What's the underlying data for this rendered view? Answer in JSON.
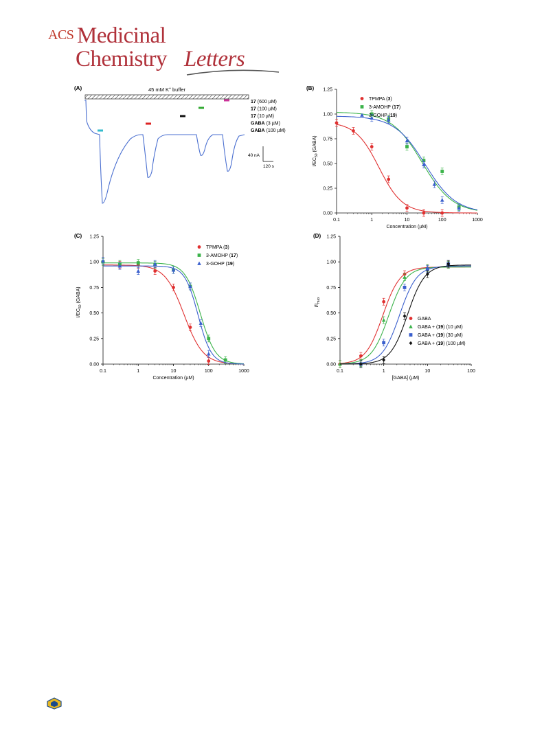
{
  "journal": {
    "acs": "ACS",
    "line1": "Medicinal",
    "line2a": "Chemistry",
    "line2b": "Letters"
  },
  "panel_a": {
    "label": "(A)",
    "buffer_label": "45 mM K",
    "buffer_sup": "+",
    "buffer_suffix": " buffer",
    "scale_current": "40 nA",
    "scale_time": "120 s",
    "legend": [
      {
        "bold": "17",
        "rest": " (600 µM)",
        "color": "#cc3399"
      },
      {
        "bold": "17",
        "rest": " (100 µM)",
        "color": "#33aa33"
      },
      {
        "bold": "17",
        "rest": " (10 µM)",
        "color": "#111111"
      },
      {
        "bold": "GABA",
        "rest": " (3 µM)",
        "color": "#dd2222"
      },
      {
        "bold": "GABA",
        "rest": " (100 µM)",
        "color": "#33bbcc"
      }
    ],
    "trace_color": "#4a6fd0"
  },
  "chart_data": [
    {
      "panel": "(B)",
      "type": "scatter",
      "xlabel": "Concentration (µM)",
      "ylabel": "I/EC50 (GABA)",
      "xscale": "log",
      "xlim": [
        0.1,
        1000
      ],
      "ylim": [
        0,
        1.25
      ],
      "xticks": [
        "0.1",
        "1",
        "10",
        "100",
        "1000"
      ],
      "yticks": [
        "0.00",
        "0.25",
        "0.50",
        "0.75",
        "1.00",
        "1.25"
      ],
      "legend_position": "top-right",
      "series": [
        {
          "name": "TPMPA",
          "bold": "3",
          "marker": "circle",
          "color": "#e03030",
          "x": [
            0.1,
            0.3,
            1,
            3,
            10,
            30,
            100
          ],
          "y": [
            0.91,
            0.83,
            0.67,
            0.34,
            0.05,
            0.0,
            0.0
          ],
          "fit": {
            "top": 0.92,
            "bottom": 0,
            "ic50": 1.6,
            "hill": 1.3
          }
        },
        {
          "name": "3-AMOHP",
          "bold": "17",
          "marker": "square",
          "color": "#3bb34a",
          "x": [
            1,
            3,
            10,
            30,
            100,
            300
          ],
          "y": [
            1.0,
            0.95,
            0.67,
            0.53,
            0.42,
            0.06
          ],
          "fit": {
            "top": 1.02,
            "bottom": 0,
            "ic50": 27,
            "hill": 1.0
          }
        },
        {
          "name": "3-GOHP",
          "bold": "19",
          "marker": "triangle",
          "color": "#3a5fcd",
          "x": [
            1,
            3,
            10,
            30,
            60,
            100,
            300
          ],
          "y": [
            0.96,
            0.94,
            0.73,
            0.49,
            0.29,
            0.13,
            0.05
          ],
          "fit": {
            "top": 0.98,
            "bottom": 0,
            "ic50": 33,
            "hill": 1.0
          }
        }
      ]
    },
    {
      "panel": "(C)",
      "type": "scatter",
      "xlabel": "Concentration (µM)",
      "ylabel": "I/EC50 (GABA)",
      "xscale": "log",
      "xlim": [
        0.1,
        1000
      ],
      "ylim": [
        0,
        1.25
      ],
      "xticks": [
        "0.1",
        "1",
        "10",
        "100",
        "1000"
      ],
      "yticks": [
        "0.00",
        "0.25",
        "0.50",
        "0.75",
        "1.00",
        "1.25"
      ],
      "legend_position": "top-right",
      "series": [
        {
          "name": "TPMPA",
          "bold": "3",
          "marker": "circle",
          "color": "#e03030",
          "x": [
            0.1,
            0.3,
            1,
            3,
            10,
            30,
            100
          ],
          "y": [
            1.0,
            0.97,
            0.97,
            0.91,
            0.75,
            0.36,
            0.03
          ],
          "fit": {
            "top": 0.97,
            "bottom": 0,
            "ic50": 20,
            "hill": 1.6
          }
        },
        {
          "name": "3-AMOHP",
          "bold": "17",
          "marker": "square",
          "color": "#3bb34a",
          "x": [
            0.1,
            0.3,
            1,
            3,
            10,
            30,
            100,
            300
          ],
          "y": [
            1.0,
            0.98,
            0.99,
            0.97,
            0.92,
            0.76,
            0.25,
            0.04
          ],
          "fit": {
            "top": 0.99,
            "bottom": 0,
            "ic50": 58,
            "hill": 2.0
          }
        },
        {
          "name": "3-GOHP",
          "bold": "19",
          "marker": "triangle",
          "color": "#3a5fcd",
          "x": [
            0.1,
            0.3,
            1,
            3,
            10,
            30,
            60,
            100
          ],
          "y": [
            1.01,
            0.96,
            0.91,
            0.98,
            0.92,
            0.76,
            0.4,
            0.1
          ],
          "fit": {
            "top": 0.96,
            "bottom": 0,
            "ic50": 50,
            "hill": 2.3
          }
        }
      ]
    },
    {
      "panel": "(D)",
      "type": "scatter",
      "xlabel": "[GABA] (µM)",
      "ylabel": "I/Imax",
      "xscale": "log",
      "xlim": [
        0.1,
        100
      ],
      "ylim": [
        0,
        1.25
      ],
      "xticks": [
        "0.1",
        "1",
        "10",
        "100"
      ],
      "yticks": [
        "0.00",
        "0.25",
        "0.50",
        "0.75",
        "1.00",
        "1.25"
      ],
      "legend_position": "bottom-right",
      "series": [
        {
          "name": "GABA",
          "bold": "",
          "suffix": "",
          "marker": "circle",
          "color": "#e03030",
          "x": [
            0.1,
            0.3,
            1,
            3,
            10,
            30
          ],
          "y": [
            0.0,
            0.08,
            0.61,
            0.88,
            0.94,
            0.97
          ],
          "fit": {
            "bottom": 0,
            "top": 0.95,
            "ec50": 0.95,
            "hill": 2.2
          }
        },
        {
          "name": "GABA + ",
          "bold": "19",
          "suffix": " (10 µM)",
          "marker": "triangle",
          "color": "#3bb34a",
          "x": [
            0.1,
            0.3,
            1,
            3,
            10,
            30
          ],
          "y": [
            0.0,
            0.01,
            0.43,
            0.85,
            0.94,
            0.97
          ],
          "fit": {
            "bottom": 0,
            "top": 0.95,
            "ec50": 1.3,
            "hill": 2.2
          }
        },
        {
          "name": "GABA + ",
          "bold": "19",
          "suffix": " (30 µM)",
          "marker": "square",
          "color": "#3a5fcd",
          "x": [
            0.3,
            1,
            3,
            10,
            30
          ],
          "y": [
            0.0,
            0.21,
            0.75,
            0.93,
            0.98
          ],
          "fit": {
            "bottom": 0,
            "top": 0.96,
            "ec50": 2.3,
            "hill": 2.2
          }
        },
        {
          "name": "GABA + ",
          "bold": "19",
          "suffix": " (100 µM)",
          "marker": "diamond",
          "color": "#111111",
          "x": [
            0.3,
            1,
            3,
            10,
            30
          ],
          "y": [
            0.0,
            0.04,
            0.47,
            0.88,
            0.98
          ],
          "fit": {
            "bottom": 0,
            "top": 0.97,
            "ec50": 3.5,
            "hill": 2.2
          }
        }
      ]
    }
  ]
}
